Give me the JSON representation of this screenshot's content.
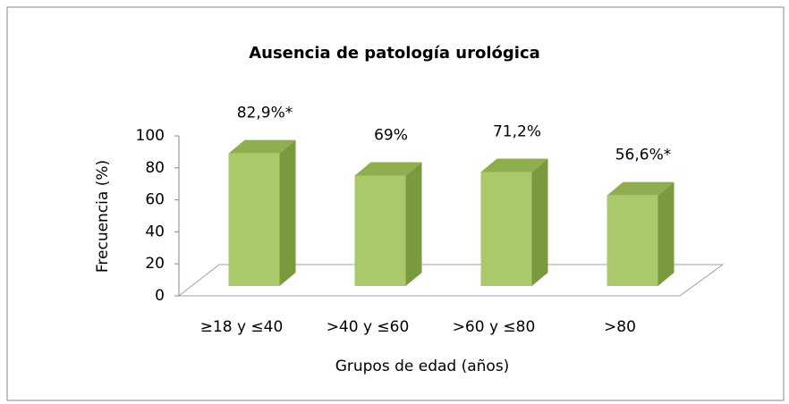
{
  "chart_data": {
    "type": "bar3d",
    "title": "Ausencia de patología urológica",
    "x_label": "Grupos de edad (años)",
    "y_label": "Frecuencia (%)",
    "categories": [
      "≥18 y ≤40",
      ">40 y ≤60",
      ">60 y ≤80",
      ">80"
    ],
    "values": [
      82.9,
      69,
      71.2,
      56.6
    ],
    "value_labels": [
      "82,9%*",
      "69%",
      "71,2%",
      "56,6%*"
    ],
    "color": "#a9c96a",
    "ylim": [
      0,
      100
    ],
    "yticks": [
      0,
      20,
      40,
      60,
      80,
      100
    ]
  }
}
